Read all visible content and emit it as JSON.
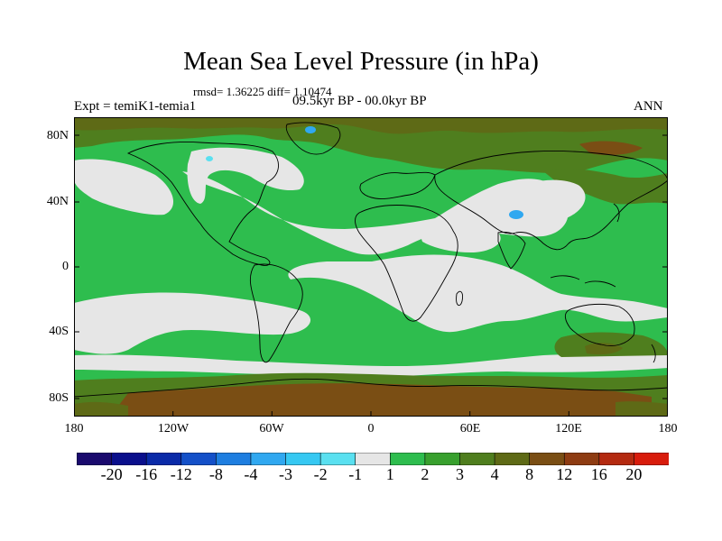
{
  "title": "Mean Sea Level Pressure (in hPa)",
  "stats_text": "rmsd= 1.36225 diff= 1.10474",
  "left_label": "Expt = temiK1-temia1",
  "period_label": "09.5kyr BP - 00.0kyr BP",
  "season_label": "ANN",
  "lat_labels": [
    "80N",
    "40N",
    "0",
    "40S",
    "80S"
  ],
  "lon_labels": [
    "180",
    "120W",
    "60W",
    "0",
    "60E",
    "120E",
    "180"
  ],
  "colorbar": {
    "colors": [
      "#1a0a6e",
      "#0a0f8c",
      "#0a2aa8",
      "#1450c8",
      "#1e7ee0",
      "#30a8f0",
      "#36c8f2",
      "#5ae0f0",
      "#e6e6e6",
      "#2ebd4e",
      "#38a02e",
      "#4f7e1e",
      "#5e6a16",
      "#7a4e14",
      "#8e3c12",
      "#b42a10",
      "#d81c0c"
    ],
    "labels": [
      "-20",
      "-16",
      "-12",
      "-8",
      "-4",
      "-3",
      "-2",
      "-1",
      "1",
      "2",
      "3",
      "4",
      "8",
      "12",
      "16",
      "20"
    ]
  },
  "map_colors": {
    "neutral": "#e6e6e6",
    "green": "#2ebd4e",
    "olive": "#4f7e1e",
    "dark": "#5e6a16",
    "brown": "#7a4e14",
    "light_blue": "#30a8f0"
  }
}
